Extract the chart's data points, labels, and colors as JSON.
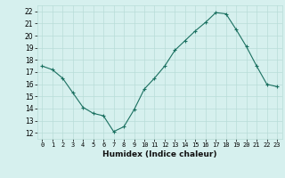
{
  "x": [
    0,
    1,
    2,
    3,
    4,
    5,
    6,
    7,
    8,
    9,
    10,
    11,
    12,
    13,
    14,
    15,
    16,
    17,
    18,
    19,
    20,
    21,
    22,
    23
  ],
  "y": [
    17.5,
    17.2,
    16.5,
    15.3,
    14.1,
    13.6,
    13.4,
    12.1,
    12.5,
    13.9,
    15.6,
    16.5,
    17.5,
    18.8,
    19.6,
    20.4,
    21.1,
    21.9,
    21.8,
    20.5,
    19.1,
    17.5,
    16.0,
    15.8
  ],
  "xlabel": "Humidex (Indice chaleur)",
  "xlim": [
    -0.5,
    23.5
  ],
  "ylim": [
    11.5,
    22.5
  ],
  "yticks": [
    12,
    13,
    14,
    15,
    16,
    17,
    18,
    19,
    20,
    21,
    22
  ],
  "xtick_labels": [
    "0",
    "1",
    "2",
    "3",
    "4",
    "5",
    "6",
    "7",
    "8",
    "9",
    "10",
    "11",
    "12",
    "13",
    "14",
    "15",
    "16",
    "17",
    "18",
    "19",
    "20",
    "21",
    "22",
    "23"
  ],
  "line_color": "#1a7060",
  "marker": "+",
  "bg_color": "#d6f0ee",
  "grid_color": "#b8dcd8"
}
